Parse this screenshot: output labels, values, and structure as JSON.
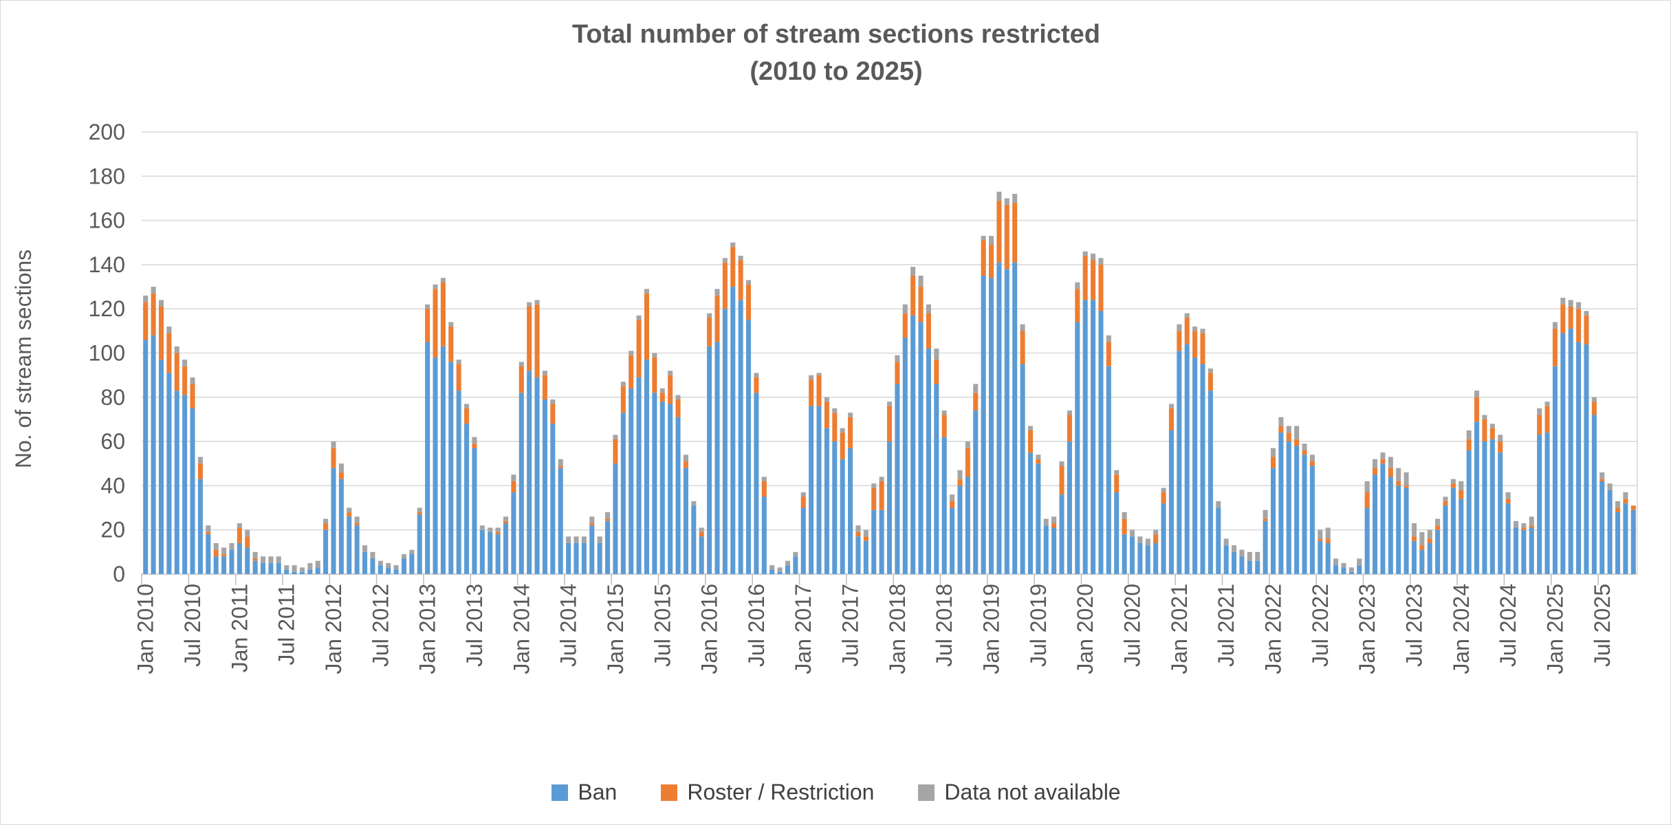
{
  "title": {
    "line1": "Total number of stream sections restricted",
    "line2": "(2010 to 2025)"
  },
  "y_axis": {
    "title": "No. of stream sections",
    "tick_labels": [
      "0",
      "20",
      "40",
      "60",
      "80",
      "100",
      "120",
      "140",
      "160",
      "180",
      "200"
    ],
    "min": 0,
    "max": 200,
    "step": 20
  },
  "x_axis": {
    "tick_labels": [
      "Jan 2010",
      "Jul 2010",
      "Jan 2011",
      "Jul 2011",
      "Jan 2012",
      "Jul 2012",
      "Jan 2013",
      "Jul 2013",
      "Jan 2014",
      "Jul 2014",
      "Jan 2015",
      "Jul 2015",
      "Jan 2016",
      "Jul 2016",
      "Jan 2017",
      "Jul 2017",
      "Jan 2018",
      "Jul 2018",
      "Jan 2019",
      "Jul 2019",
      "Jan 2020",
      "Jul 2020",
      "Jan 2021",
      "Jul 2021",
      "Jan 2022",
      "Jul 2022",
      "Jan 2023",
      "Jul 2023",
      "Jan 2024",
      "Jul 2024",
      "Jan 2025",
      "Jul 2025"
    ],
    "label_every": 6
  },
  "legend": [
    {
      "label": "Ban",
      "color": "#5B9BD5"
    },
    {
      "label": "Roster / Restriction",
      "color": "#ED7D31"
    },
    {
      "label": "Data not available",
      "color": "#A5A5A5"
    }
  ],
  "colors": {
    "grid": "#D9D9D9",
    "axis": "#BFBFBF",
    "text": "#595959"
  },
  "chart_data": {
    "type": "bar",
    "stacked": true,
    "title": "Total number of stream sections restricted (2010 to 2025)",
    "xlabel": "",
    "ylabel": "No. of stream sections",
    "ylim": [
      0,
      200
    ],
    "grid": true,
    "legend_position": "bottom",
    "categories": [
      "Jan 2010",
      "Feb 2010",
      "Mar 2010",
      "Apr 2010",
      "May 2010",
      "Jun 2010",
      "Jul 2010",
      "Aug 2010",
      "Sep 2010",
      "Oct 2010",
      "Nov 2010",
      "Dec 2010",
      "Jan 2011",
      "Feb 2011",
      "Mar 2011",
      "Apr 2011",
      "May 2011",
      "Jun 2011",
      "Jul 2011",
      "Aug 2011",
      "Sep 2011",
      "Oct 2011",
      "Nov 2011",
      "Dec 2011",
      "Jan 2012",
      "Feb 2012",
      "Mar 2012",
      "Apr 2012",
      "May 2012",
      "Jun 2012",
      "Jul 2012",
      "Aug 2012",
      "Sep 2012",
      "Oct 2012",
      "Nov 2012",
      "Dec 2012",
      "Jan 2013",
      "Feb 2013",
      "Mar 2013",
      "Apr 2013",
      "May 2013",
      "Jun 2013",
      "Jul 2013",
      "Aug 2013",
      "Sep 2013",
      "Oct 2013",
      "Nov 2013",
      "Dec 2013",
      "Jan 2014",
      "Feb 2014",
      "Mar 2014",
      "Apr 2014",
      "May 2014",
      "Jun 2014",
      "Jul 2014",
      "Aug 2014",
      "Sep 2014",
      "Oct 2014",
      "Nov 2014",
      "Dec 2014",
      "Jan 2015",
      "Feb 2015",
      "Mar 2015",
      "Apr 2015",
      "May 2015",
      "Jun 2015",
      "Jul 2015",
      "Aug 2015",
      "Sep 2015",
      "Oct 2015",
      "Nov 2015",
      "Dec 2015",
      "Jan 2016",
      "Feb 2016",
      "Mar 2016",
      "Apr 2016",
      "May 2016",
      "Jun 2016",
      "Jul 2016",
      "Aug 2016",
      "Sep 2016",
      "Oct 2016",
      "Nov 2016",
      "Dec 2016",
      "Jan 2017",
      "Feb 2017",
      "Mar 2017",
      "Apr 2017",
      "May 2017",
      "Jun 2017",
      "Jul 2017",
      "Aug 2017",
      "Sep 2017",
      "Oct 2017",
      "Nov 2017",
      "Dec 2017",
      "Jan 2018",
      "Feb 2018",
      "Mar 2018",
      "Apr 2018",
      "May 2018",
      "Jun 2018",
      "Jul 2018",
      "Aug 2018",
      "Sep 2018",
      "Oct 2018",
      "Nov 2018",
      "Dec 2018",
      "Jan 2019",
      "Feb 2019",
      "Mar 2019",
      "Apr 2019",
      "May 2019",
      "Jun 2019",
      "Jul 2019",
      "Aug 2019",
      "Sep 2019",
      "Oct 2019",
      "Nov 2019",
      "Dec 2019",
      "Jan 2020",
      "Feb 2020",
      "Mar 2020",
      "Apr 2020",
      "May 2020",
      "Jun 2020",
      "Jul 2020",
      "Aug 2020",
      "Sep 2020",
      "Oct 2020",
      "Nov 2020",
      "Dec 2020",
      "Jan 2021",
      "Feb 2021",
      "Mar 2021",
      "Apr 2021",
      "May 2021",
      "Jun 2021",
      "Jul 2021",
      "Aug 2021",
      "Sep 2021",
      "Oct 2021",
      "Nov 2021",
      "Dec 2021",
      "Jan 2022",
      "Feb 2022",
      "Mar 2022",
      "Apr 2022",
      "May 2022",
      "Jun 2022",
      "Jul 2022",
      "Aug 2022",
      "Sep 2022",
      "Oct 2022",
      "Nov 2022",
      "Dec 2022",
      "Jan 2023",
      "Feb 2023",
      "Mar 2023",
      "Apr 2023",
      "May 2023",
      "Jun 2023",
      "Jul 2023",
      "Aug 2023",
      "Sep 2023",
      "Oct 2023",
      "Nov 2023",
      "Dec 2023",
      "Jan 2024",
      "Feb 2024",
      "Mar 2024",
      "Apr 2024",
      "May 2024",
      "Jun 2024",
      "Jul 2024",
      "Aug 2024",
      "Sep 2024",
      "Oct 2024",
      "Nov 2024",
      "Dec 2024",
      "Jan 2025",
      "Feb 2025",
      "Mar 2025",
      "Apr 2025",
      "May 2025",
      "Jun 2025",
      "Jul 2025",
      "Aug 2025",
      "Sep 2025",
      "Oct 2025",
      "Nov 2025"
    ],
    "series": [
      {
        "name": "Ban",
        "color": "#5B9BD5",
        "values": [
          106,
          108,
          97,
          91,
          83,
          81,
          75,
          43,
          18,
          8,
          8,
          11,
          14,
          12,
          6,
          5,
          5,
          5,
          2,
          1,
          1,
          2,
          3,
          20,
          48,
          43,
          26,
          22,
          10,
          7,
          4,
          3,
          2,
          7,
          9,
          27,
          105,
          98,
          103,
          96,
          83,
          68,
          57,
          20,
          19,
          18,
          23,
          37,
          82,
          92,
          89,
          79,
          68,
          48,
          14,
          14,
          14,
          22,
          14,
          24,
          50,
          73,
          84,
          89,
          97,
          82,
          78,
          77,
          71,
          48,
          31,
          17,
          103,
          105,
          120,
          130,
          124,
          115,
          82,
          35,
          2,
          1,
          4,
          8,
          30,
          76,
          76,
          66,
          60,
          52,
          57,
          17,
          15,
          29,
          29,
          60,
          86,
          107,
          117,
          114,
          102,
          86,
          62,
          30,
          40,
          44,
          74,
          135,
          134,
          141,
          138,
          141,
          95,
          55,
          50,
          22,
          21,
          36,
          60,
          114,
          124,
          124,
          119,
          94,
          37,
          18,
          17,
          14,
          13,
          14,
          32,
          65,
          101,
          104,
          98,
          95,
          83,
          30,
          13,
          10,
          8,
          6,
          6,
          24,
          48,
          64,
          60,
          58,
          54,
          49,
          15,
          14,
          4,
          3,
          1,
          4,
          30,
          45,
          50,
          44,
          40,
          39,
          15,
          11,
          14,
          20,
          31,
          39,
          34,
          56,
          69,
          60,
          61,
          55,
          32,
          21,
          20,
          21,
          63,
          64,
          94,
          109,
          111,
          105,
          104,
          72,
          42,
          38,
          28,
          32,
          29
        ]
      },
      {
        "name": "Roster / Restriction",
        "color": "#ED7D31",
        "values": [
          17,
          19,
          24,
          18,
          17,
          13,
          11,
          7,
          1,
          3,
          1,
          0,
          7,
          5,
          1,
          0,
          0,
          0,
          0,
          0,
          0,
          0,
          0,
          3,
          9,
          3,
          2,
          1,
          0,
          0,
          0,
          0,
          0,
          0,
          0,
          1,
          15,
          31,
          29,
          16,
          12,
          7,
          2,
          0,
          0,
          1,
          1,
          5,
          12,
          29,
          33,
          11,
          9,
          1,
          0,
          0,
          0,
          1,
          0,
          1,
          11,
          12,
          15,
          26,
          30,
          16,
          4,
          13,
          8,
          3,
          0,
          2,
          13,
          21,
          21,
          18,
          18,
          16,
          7,
          7,
          0,
          0,
          0,
          0,
          5,
          12,
          14,
          12,
          13,
          12,
          14,
          2,
          2,
          10,
          13,
          16,
          10,
          11,
          18,
          16,
          16,
          11,
          10,
          3,
          3,
          13,
          8,
          16,
          15,
          28,
          29,
          27,
          15,
          10,
          2,
          0,
          2,
          13,
          12,
          15,
          20,
          18,
          21,
          11,
          8,
          7,
          0,
          0,
          0,
          4,
          5,
          10,
          9,
          12,
          12,
          14,
          8,
          0,
          0,
          0,
          0,
          0,
          0,
          1,
          5,
          3,
          4,
          3,
          2,
          2,
          1,
          2,
          0,
          0,
          0,
          0,
          7,
          3,
          2,
          4,
          2,
          1,
          2,
          2,
          2,
          2,
          2,
          2,
          4,
          5,
          11,
          10,
          5,
          5,
          2,
          0,
          1,
          1,
          9,
          12,
          17,
          13,
          10,
          15,
          13,
          6,
          1,
          0,
          2,
          2,
          2
        ]
      },
      {
        "name": "Data not available",
        "color": "#A5A5A5",
        "values": [
          3,
          3,
          3,
          3,
          3,
          3,
          3,
          3,
          3,
          3,
          3,
          3,
          2,
          3,
          3,
          3,
          3,
          3,
          2,
          3,
          2,
          3,
          3,
          2,
          3,
          4,
          2,
          3,
          3,
          3,
          2,
          2,
          2,
          2,
          2,
          2,
          2,
          2,
          2,
          2,
          2,
          2,
          3,
          2,
          2,
          2,
          2,
          3,
          2,
          2,
          2,
          2,
          2,
          3,
          3,
          3,
          3,
          3,
          3,
          3,
          2,
          2,
          2,
          2,
          2,
          2,
          2,
          2,
          2,
          3,
          2,
          2,
          2,
          3,
          2,
          2,
          2,
          2,
          2,
          2,
          2,
          2,
          2,
          2,
          2,
          2,
          1,
          2,
          2,
          2,
          2,
          3,
          3,
          2,
          2,
          2,
          3,
          4,
          4,
          5,
          4,
          5,
          2,
          3,
          4,
          3,
          4,
          2,
          4,
          4,
          3,
          4,
          3,
          2,
          2,
          3,
          3,
          2,
          2,
          3,
          2,
          3,
          3,
          3,
          2,
          3,
          3,
          3,
          3,
          2,
          2,
          2,
          3,
          2,
          2,
          2,
          2,
          3,
          3,
          3,
          3,
          4,
          4,
          4,
          4,
          4,
          3,
          6,
          3,
          3,
          4,
          5,
          3,
          2,
          2,
          3,
          5,
          4,
          3,
          5,
          6,
          6,
          6,
          6,
          4,
          3,
          2,
          2,
          4,
          4,
          3,
          2,
          2,
          3,
          3,
          3,
          2,
          4,
          3,
          2,
          3,
          3,
          3,
          3,
          2,
          2,
          3,
          3,
          3,
          3,
          0
        ]
      }
    ]
  }
}
